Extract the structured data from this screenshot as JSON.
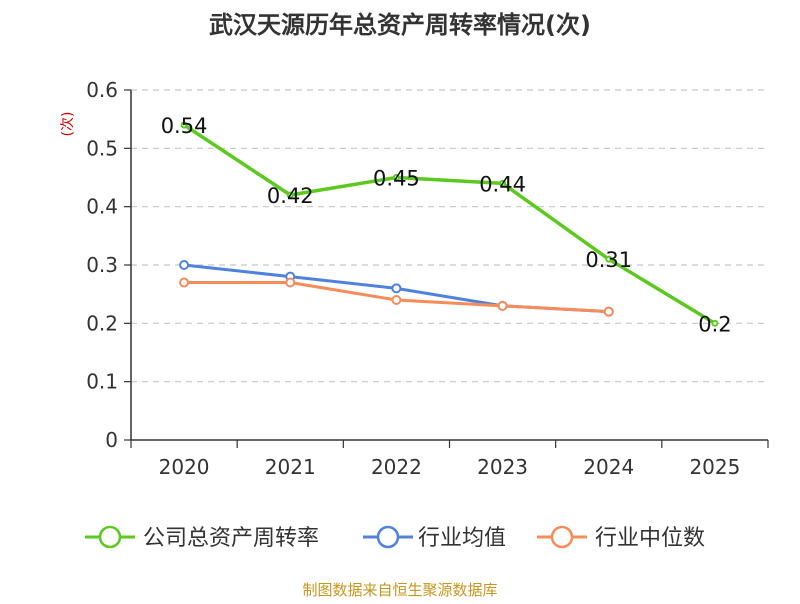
{
  "chart_data": {
    "type": "line",
    "title": "武汉天源历年总资产周转率情况(次)",
    "ylabel": "(次)",
    "categories": [
      "2020",
      "2021",
      "2022",
      "2023",
      "2024",
      "2025"
    ],
    "ylim": [
      0,
      0.6
    ],
    "yticks": [
      0,
      0.1,
      0.2,
      0.3,
      0.4,
      0.5,
      0.6
    ],
    "ytick_labels": [
      "0",
      "0.1",
      "0.2",
      "0.3",
      "0.4",
      "0.5",
      "0.6"
    ],
    "grid": true,
    "legend_position": "bottom",
    "series": [
      {
        "name": "公司总资产周转率",
        "color": "#5cc91f",
        "values": [
          0.54,
          0.42,
          0.45,
          0.44,
          0.31,
          0.2
        ],
        "data_labels": [
          "0.54",
          "0.42",
          "0.45",
          "0.44",
          "0.31",
          "0.2"
        ]
      },
      {
        "name": "行业均值",
        "color": "#4f82dc",
        "values": [
          0.3,
          0.28,
          0.26,
          0.23,
          0.22,
          null
        ]
      },
      {
        "name": "行业中位数",
        "color": "#f58c5a",
        "values": [
          0.27,
          0.27,
          0.24,
          0.23,
          0.22,
          null
        ]
      }
    ],
    "source_note": "制图数据来自恒生聚源数据库"
  }
}
